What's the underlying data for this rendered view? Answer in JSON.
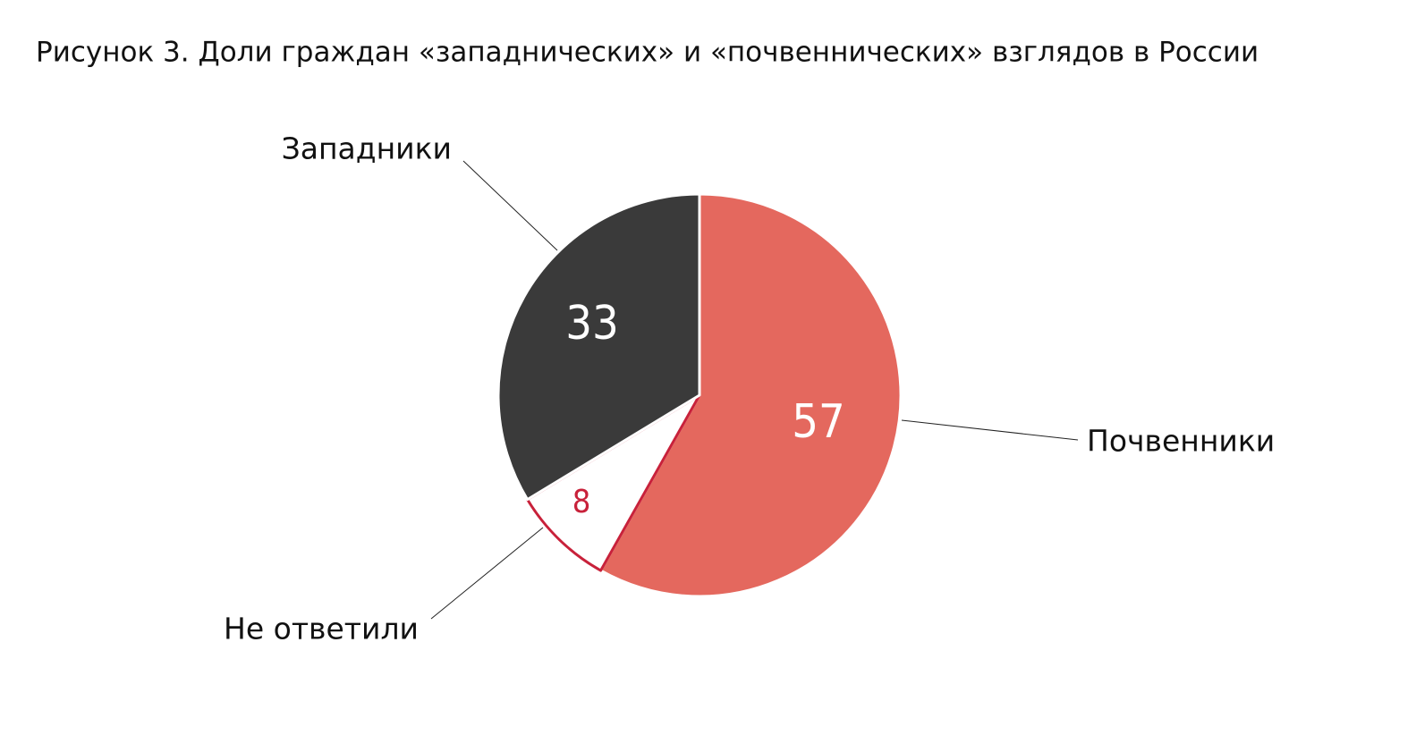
{
  "chart_data": {
    "type": "pie",
    "title": "Рисунок 3. Доли граждан «западнических» и «почвеннических» взглядов в России",
    "categories": [
      "Почвенники",
      "Не ответили",
      "Западники"
    ],
    "values": [
      57,
      8,
      33
    ],
    "colors": [
      "#e4685e",
      "#ffffff",
      "#3a3a3a"
    ],
    "edge_colors": [
      "#ffffff",
      "#c8213a",
      "#ffffff"
    ],
    "label_colors": [
      "#ffffff",
      "#c8213a",
      "#ffffff"
    ]
  }
}
